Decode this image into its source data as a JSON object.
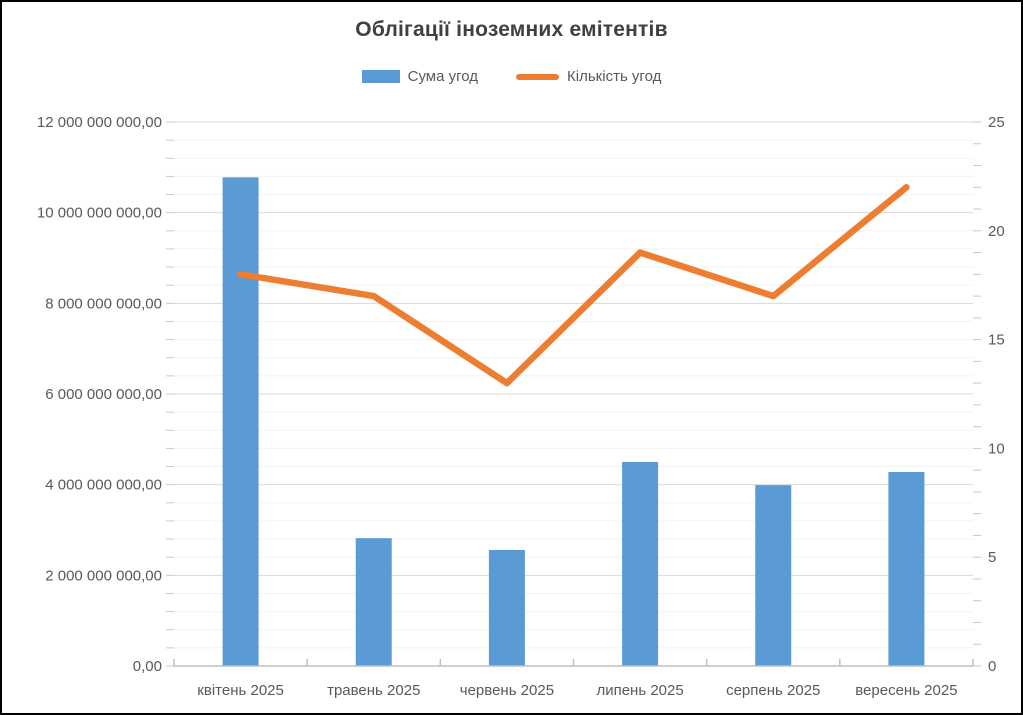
{
  "title": "Облігації іноземних емітентів",
  "legend": {
    "sum_label": "Сума угод",
    "count_label": "Кількість угод"
  },
  "colors": {
    "bar": "#5B9BD5",
    "line": "#ED7D31",
    "title_text": "#404040",
    "axis_text": "#595959",
    "major_grid": "#D9D9D9",
    "minor_grid": "#F2F2F2",
    "axis_line": "#BFBFBF",
    "side_tick": "#C9C9C9"
  },
  "chart_data": {
    "type": "bar",
    "title": "Облігації іноземних емітентів",
    "categories": [
      "квітень 2025",
      "травень 2025",
      "червень 2025",
      "липень 2025",
      "серпень 2025",
      "вересень 2025"
    ],
    "series": [
      {
        "name": "Сума угод",
        "type": "bar",
        "axis": "left",
        "values": [
          10780000000,
          2820000000,
          2560000000,
          4500000000,
          3990000000,
          4280000000
        ]
      },
      {
        "name": "Кількість угод",
        "type": "line",
        "axis": "right",
        "values": [
          18,
          17,
          13,
          19,
          17,
          22
        ]
      }
    ],
    "left_axis": {
      "min": 0,
      "max": 12000000000,
      "major_unit": 2000000000,
      "minor_unit": 400000000,
      "tick_labels": [
        "0,00",
        "2 000 000 000,00",
        "4 000 000 000,00",
        "6 000 000 000,00",
        "8 000 000 000,00",
        "10 000 000 000,00",
        "12 000 000 000,00"
      ]
    },
    "right_axis": {
      "min": 0,
      "max": 25,
      "major_unit": 5,
      "minor_unit": 1,
      "tick_labels": [
        "0",
        "5",
        "10",
        "15",
        "20",
        "25"
      ]
    },
    "grid": "horizontal major + minor",
    "legend_position": "top"
  }
}
